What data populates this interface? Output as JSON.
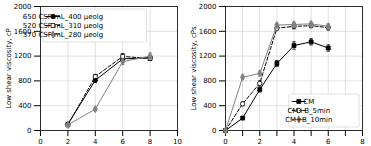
{
  "chart_data": [
    {
      "type": "line",
      "ylabel": "Low shear viscosity, cP",
      "xlim": [
        0,
        10
      ],
      "ylim": [
        0,
        2000
      ],
      "xticks": [
        0,
        2,
        4,
        6,
        8,
        10
      ],
      "yticks": [
        0,
        400,
        800,
        1200,
        1600,
        2000
      ],
      "grid": true,
      "legend": "upper left",
      "series": [
        {
          "name": "650 CSF mL_400 μeolg",
          "color": "black",
          "marker": "circle",
          "line_style": "solid",
          "x": [
            2,
            4,
            6,
            8
          ],
          "values": [
            105,
            810,
            1155,
            1175
          ],
          "yerr": [
            15,
            35,
            40,
            35
          ]
        },
        {
          "name": "520 CSF mL_310 μeolg",
          "color": "black",
          "marker": "square-open",
          "line_style": "dashed",
          "x": [
            2,
            4,
            6,
            8
          ],
          "values": [
            90,
            870,
            1195,
            1160
          ],
          "yerr": [
            15,
            35,
            45,
            30
          ]
        },
        {
          "name": "370 CSF mL_280 μeolg",
          "color": "gray",
          "marker": "diamond",
          "line_style": "solid",
          "x": [
            2,
            4,
            6,
            8
          ],
          "values": [
            90,
            345,
            1110,
            1200
          ],
          "yerr": [
            15,
            20,
            45,
            50
          ]
        }
      ]
    },
    {
      "type": "line",
      "ylabel": "Low shear viscosity, cPs",
      "xlim": [
        0,
        8
      ],
      "ylim": [
        0,
        2000
      ],
      "xticks": [
        0,
        {
          "value": 1,
          "label": null
        },
        2,
        {
          "value": 3,
          "label": null
        },
        4,
        {
          "value": 5,
          "label": null
        },
        6,
        {
          "value": 7,
          "label": null
        },
        8
      ],
      "yticks": [
        0,
        400,
        800,
        1200,
        1600,
        2000
      ],
      "grid": true,
      "legend": "lower right",
      "series": [
        {
          "name": "CM",
          "color": "black",
          "marker": "square",
          "line_style": "solid",
          "x": [
            0,
            1,
            2,
            3,
            4,
            5,
            6
          ],
          "values": [
            0,
            200,
            660,
            1080,
            1370,
            1430,
            1330
          ],
          "yerr": [
            0,
            20,
            40,
            50,
            60,
            50,
            50
          ]
        },
        {
          "name": "CM+B_5min",
          "color": "black",
          "marker": "circle-open",
          "line_style": "dashed",
          "x": [
            0,
            1,
            2,
            3,
            4,
            5,
            6
          ],
          "values": [
            0,
            430,
            760,
            1650,
            1680,
            1690,
            1660
          ],
          "yerr": [
            0,
            30,
            40,
            30,
            40,
            30,
            40
          ]
        },
        {
          "name": "CM+B_10min",
          "color": "gray",
          "marker": "diamond",
          "line_style": "solid",
          "x": [
            0,
            1,
            2,
            3,
            4,
            5,
            6
          ],
          "values": [
            0,
            860,
            920,
            1700,
            1710,
            1720,
            1680
          ],
          "yerr": [
            0,
            30,
            40,
            30,
            40,
            30,
            40
          ]
        }
      ]
    }
  ]
}
